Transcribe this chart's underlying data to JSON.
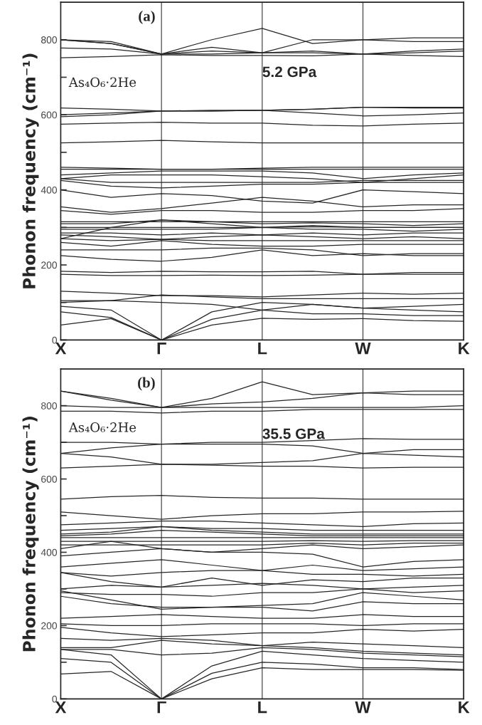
{
  "chart_data": [
    {
      "type": "line",
      "ylabel": "Phonon frequency (cm⁻¹)",
      "color": "#262626",
      "annotations": [
        "(a)",
        "As₄O₆·2He",
        "5.2 GPa"
      ],
      "categories": [
        "X",
        null,
        "Γ",
        null,
        "L",
        null,
        "W",
        null,
        "K"
      ],
      "ylim": [
        0,
        900
      ],
      "yticks": [
        0,
        {
          "value": 100,
          "label": null
        },
        200,
        {
          "value": 300,
          "label": null
        },
        400,
        {
          "value": 500,
          "label": null
        },
        600,
        {
          "value": 700,
          "label": null
        },
        800
      ],
      "grid": "x",
      "legend": false,
      "line_style": "solid",
      "marker": "none",
      "series": [
        {
          "values": [
            40,
            57,
            0,
            40,
            58,
            55,
            57,
            52,
            50
          ]
        },
        {
          "values": [
            75,
            60,
            0,
            55,
            80,
            70,
            70,
            65,
            65
          ]
        },
        {
          "values": [
            90,
            80,
            0,
            75,
            100,
            95,
            85,
            80,
            75
          ]
        },
        {
          "values": [
            100,
            105,
            100,
            95,
            80,
            95,
            85,
            90,
            95
          ]
        },
        {
          "values": [
            105,
            105,
            120,
            115,
            110,
            110,
            110,
            110,
            110
          ]
        },
        {
          "values": [
            130,
            125,
            118,
            118,
            115,
            120,
            125,
            122,
            125
          ]
        },
        {
          "values": [
            175,
            172,
            172,
            173,
            172,
            173,
            175,
            175,
            175
          ]
        },
        {
          "values": [
            183,
            180,
            183,
            182,
            182,
            183,
            175,
            180,
            180
          ]
        },
        {
          "values": [
            225,
            215,
            210,
            220,
            240,
            225,
            230,
            225,
            225
          ]
        },
        {
          "values": [
            240,
            240,
            240,
            245,
            245,
            240,
            225,
            230,
            230
          ]
        },
        {
          "values": [
            260,
            250,
            265,
            255,
            250,
            250,
            255,
            255,
            255
          ]
        },
        {
          "values": [
            270,
            265,
            268,
            265,
            265,
            265,
            265,
            265,
            265
          ]
        },
        {
          "values": [
            280,
            275,
            268,
            275,
            280,
            275,
            270,
            275,
            270
          ]
        },
        {
          "values": [
            285,
            285,
            280,
            285,
            280,
            285,
            280,
            285,
            285
          ]
        },
        {
          "values": [
            295,
            295,
            295,
            295,
            300,
            295,
            295,
            290,
            295
          ]
        },
        {
          "values": [
            300,
            300,
            300,
            300,
            300,
            302,
            300,
            300,
            300
          ]
        },
        {
          "values": [
            270,
            300,
            320,
            310,
            300,
            305,
            300,
            300,
            300
          ]
        },
        {
          "values": [
            310,
            310,
            320,
            315,
            310,
            312,
            310,
            305,
            310
          ]
        },
        {
          "values": [
            315,
            315,
            315,
            315,
            315,
            315,
            315,
            315,
            315
          ]
        },
        {
          "values": [
            345,
            335,
            345,
            345,
            340,
            340,
            345,
            345,
            350
          ]
        },
        {
          "values": [
            355,
            340,
            350,
            365,
            380,
            370,
            355,
            360,
            360
          ]
        },
        {
          "values": [
            400,
            380,
            390,
            385,
            370,
            365,
            400,
            395,
            390
          ]
        },
        {
          "values": [
            425,
            410,
            405,
            410,
            415,
            415,
            420,
            420,
            420
          ]
        },
        {
          "values": [
            430,
            420,
            420,
            420,
            420,
            420,
            425,
            425,
            425
          ]
        },
        {
          "values": [
            430,
            440,
            440,
            440,
            435,
            430,
            420,
            430,
            440
          ]
        },
        {
          "values": [
            440,
            445,
            450,
            450,
            450,
            445,
            430,
            440,
            445
          ]
        },
        {
          "values": [
            455,
            455,
            455,
            455,
            455,
            455,
            455,
            455,
            455
          ]
        },
        {
          "values": [
            460,
            458,
            455,
            455,
            458,
            460,
            460,
            460,
            460
          ]
        },
        {
          "values": [
            525,
            528,
            532,
            528,
            525,
            525,
            525,
            525,
            525
          ]
        },
        {
          "values": [
            575,
            578,
            580,
            578,
            578,
            572,
            570,
            575,
            578
          ]
        },
        {
          "values": [
            595,
            600,
            610,
            612,
            612,
            605,
            597,
            600,
            605
          ]
        },
        {
          "values": [
            600,
            605,
            610,
            610,
            612,
            615,
            620,
            618,
            618
          ]
        },
        {
          "values": [
            618,
            615,
            610,
            610,
            612,
            615,
            620,
            620,
            620
          ]
        },
        {
          "values": [
            752,
            755,
            760,
            758,
            758,
            757,
            762,
            758,
            755
          ]
        },
        {
          "values": [
            778,
            775,
            762,
            762,
            765,
            765,
            762,
            765,
            770
          ]
        },
        {
          "values": [
            800,
            790,
            762,
            770,
            765,
            770,
            762,
            770,
            775
          ]
        },
        {
          "values": [
            800,
            790,
            762,
            800,
            830,
            790,
            800,
            795,
            795
          ]
        },
        {
          "values": [
            800,
            795,
            762,
            780,
            765,
            800,
            800,
            805,
            805
          ]
        }
      ]
    },
    {
      "type": "line",
      "ylabel": "Phonon frequency (cm⁻¹)",
      "color": "#262626",
      "annotations": [
        "(b)",
        "As₄O₆·2He",
        "35.5 GPa"
      ],
      "categories": [
        "X",
        null,
        "Γ",
        null,
        "L",
        null,
        "W",
        null,
        "K"
      ],
      "ylim": [
        0,
        900
      ],
      "yticks": [
        0,
        {
          "value": 100,
          "label": null
        },
        200,
        {
          "value": 300,
          "label": null
        },
        400,
        {
          "value": 500,
          "label": null
        },
        600,
        {
          "value": 700,
          "label": null
        },
        800
      ],
      "grid": "x",
      "legend": false,
      "line_style": "solid",
      "marker": "none",
      "series": [
        {
          "values": [
            68,
            75,
            0,
            55,
            85,
            80,
            80,
            80,
            78
          ]
        },
        {
          "values": [
            110,
            100,
            0,
            70,
            100,
            95,
            85,
            85,
            80
          ]
        },
        {
          "values": [
            135,
            120,
            0,
            90,
            130,
            120,
            110,
            105,
            100
          ]
        },
        {
          "values": [
            135,
            135,
            120,
            125,
            140,
            135,
            125,
            120,
            115
          ]
        },
        {
          "values": [
            140,
            140,
            160,
            150,
            145,
            140,
            130,
            125,
            120
          ]
        },
        {
          "values": [
            165,
            160,
            165,
            160,
            145,
            155,
            150,
            145,
            140
          ]
        },
        {
          "values": [
            195,
            180,
            170,
            175,
            180,
            180,
            190,
            185,
            190
          ]
        },
        {
          "values": [
            205,
            200,
            200,
            205,
            205,
            205,
            200,
            205,
            205
          ]
        },
        {
          "values": [
            220,
            225,
            230,
            225,
            220,
            220,
            230,
            225,
            225
          ]
        },
        {
          "values": [
            280,
            260,
            250,
            250,
            250,
            240,
            265,
            260,
            260
          ]
        },
        {
          "values": [
            295,
            270,
            245,
            250,
            255,
            260,
            290,
            280,
            270
          ]
        },
        {
          "values": [
            290,
            285,
            285,
            280,
            290,
            290,
            300,
            290,
            295
          ]
        },
        {
          "values": [
            300,
            310,
            305,
            310,
            315,
            310,
            300,
            305,
            310
          ]
        },
        {
          "values": [
            345,
            320,
            305,
            330,
            310,
            325,
            320,
            330,
            330
          ]
        },
        {
          "values": [
            345,
            335,
            345,
            350,
            350,
            340,
            340,
            335,
            340
          ]
        },
        {
          "values": [
            360,
            370,
            380,
            365,
            350,
            365,
            350,
            355,
            360
          ]
        },
        {
          "values": [
            390,
            400,
            410,
            400,
            400,
            395,
            360,
            375,
            380
          ]
        },
        {
          "values": [
            410,
            430,
            410,
            400,
            410,
            420,
            410,
            415,
            420
          ]
        },
        {
          "values": [
            420,
            420,
            420,
            420,
            420,
            425,
            420,
            425,
            425
          ]
        },
        {
          "values": [
            430,
            430,
            430,
            430,
            430,
            432,
            430,
            432,
            432
          ]
        },
        {
          "values": [
            440,
            440,
            440,
            440,
            440,
            440,
            440,
            440,
            440
          ]
        },
        {
          "values": [
            445,
            450,
            460,
            455,
            450,
            445,
            445,
            445,
            445
          ]
        },
        {
          "values": [
            450,
            455,
            470,
            460,
            455,
            450,
            450,
            450,
            450
          ]
        },
        {
          "values": [
            460,
            465,
            470,
            465,
            465,
            460,
            460,
            460,
            460
          ]
        },
        {
          "values": [
            475,
            480,
            485,
            485,
            480,
            475,
            470,
            478,
            480
          ]
        },
        {
          "values": [
            510,
            500,
            490,
            500,
            505,
            505,
            510,
            510,
            512
          ]
        },
        {
          "values": [
            545,
            552,
            555,
            550,
            548,
            548,
            545,
            545,
            545
          ]
        },
        {
          "values": [
            630,
            635,
            640,
            638,
            635,
            635,
            630,
            632,
            632
          ]
        },
        {
          "values": [
            670,
            660,
            640,
            640,
            645,
            650,
            670,
            665,
            660
          ]
        },
        {
          "values": [
            670,
            685,
            695,
            695,
            695,
            690,
            670,
            680,
            680
          ]
        },
        {
          "values": [
            700,
            700,
            695,
            700,
            700,
            705,
            710,
            708,
            708
          ]
        },
        {
          "values": [
            785,
            785,
            780,
            785,
            785,
            790,
            790,
            790,
            790
          ]
        },
        {
          "values": [
            800,
            795,
            795,
            795,
            795,
            795,
            795,
            795,
            800
          ]
        },
        {
          "values": [
            840,
            815,
            795,
            805,
            810,
            820,
            835,
            830,
            830
          ]
        },
        {
          "values": [
            840,
            820,
            795,
            820,
            865,
            830,
            835,
            840,
            840
          ]
        }
      ]
    }
  ]
}
